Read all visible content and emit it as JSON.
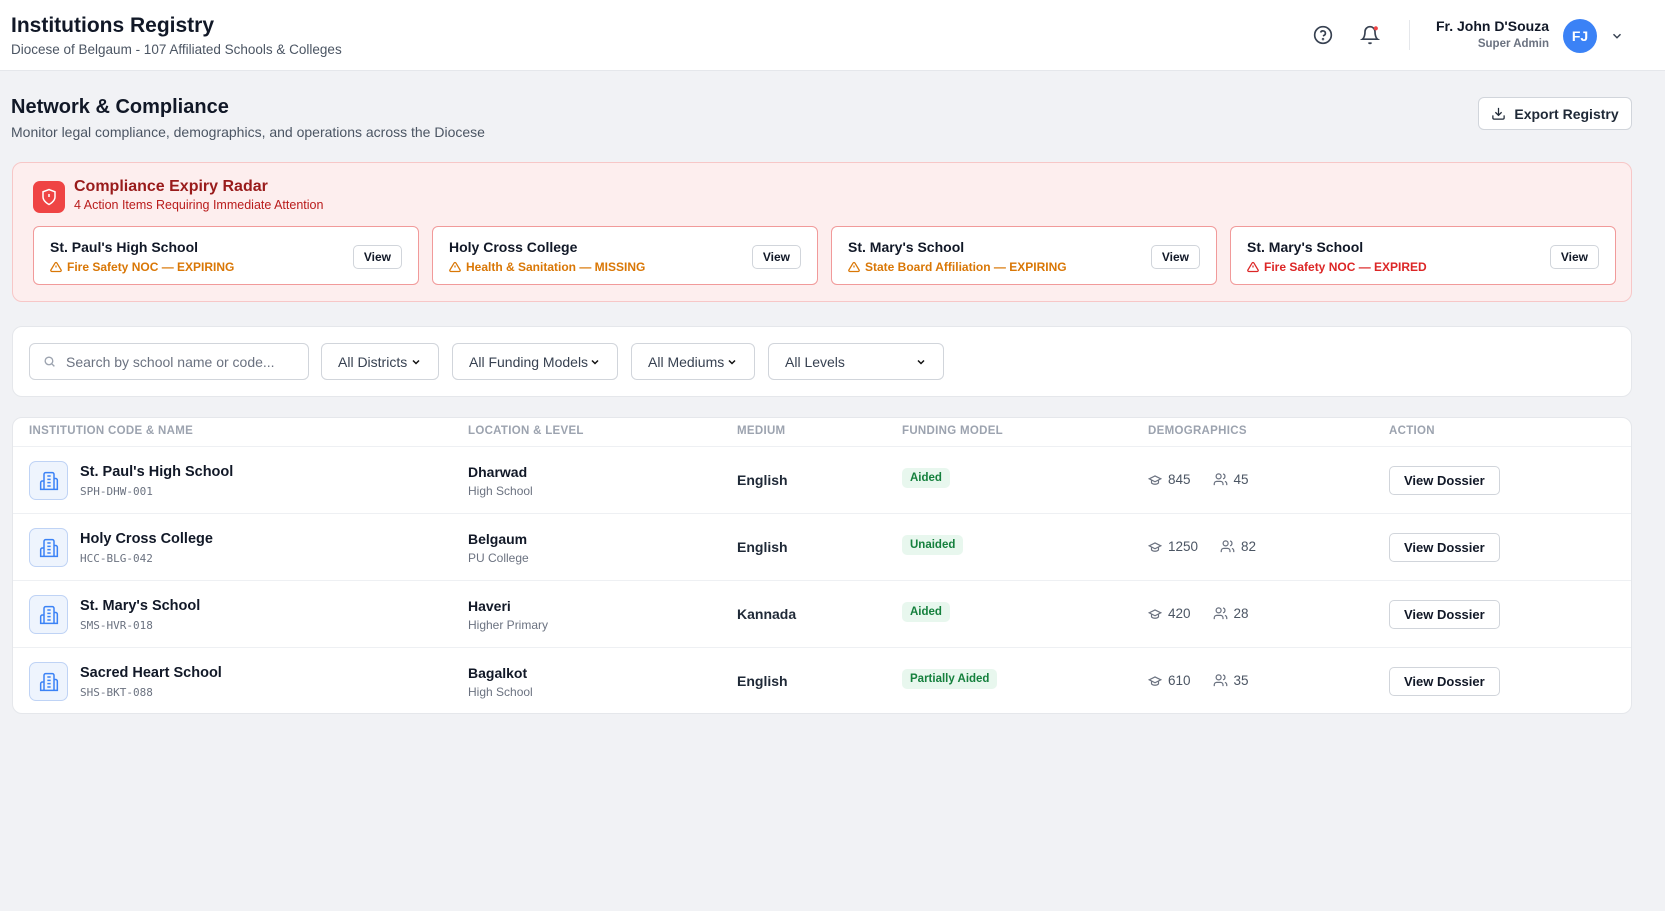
{
  "header": {
    "title": "Institutions Registry",
    "subtitle": "Diocese of Belgaum - 107 Affiliated Schools & Colleges",
    "user_name": "Fr. John D'Souza",
    "user_role": "Super Admin",
    "initials": "FJ"
  },
  "page": {
    "title": "Network & Compliance",
    "subtitle": "Monitor legal compliance, demographics, and operations across the Diocese",
    "export_button": "Export Registry"
  },
  "radar": {
    "title": "Compliance Expiry Radar",
    "subtitle": "4 Action Items Requiring Immediate Attention",
    "alerts": [
      {
        "school": "St. Paul's High School",
        "issue": "Fire Safety NOC — EXPIRING",
        "button": "View"
      },
      {
        "school": "Holy Cross College",
        "issue": "Health & Sanitation — MISSING",
        "button": "View"
      },
      {
        "school": "St. Mary's School",
        "issue": "State Board Affiliation — EXPIRING",
        "button": "View"
      },
      {
        "school": "St. Mary's School",
        "issue": "Fire Safety NOC — EXPIRED",
        "button": "View"
      }
    ]
  },
  "filters": {
    "search_placeholder": "Search by school name or code...",
    "selects": [
      "All Districts",
      "All Funding Models",
      "All Mediums",
      "All Levels"
    ]
  },
  "table": {
    "columns": [
      "Institution Code & Name",
      "Location & Level",
      "Medium",
      "Funding Model",
      "Demographics",
      "Action"
    ],
    "rows": [
      {
        "name": "St. Paul's High School",
        "code": "SPH-DHW-001",
        "location": "Dharwad",
        "level": "High School",
        "medium": "English",
        "funding": "Aided",
        "students": "845",
        "staff": "45",
        "action": "View Dossier"
      },
      {
        "name": "Holy Cross College",
        "code": "HCC-BLG-042",
        "location": "Belgaum",
        "level": "PU College",
        "medium": "English",
        "funding": "Unaided",
        "students": "1250",
        "staff": "82",
        "action": "View Dossier"
      },
      {
        "name": "St. Mary's School",
        "code": "SMS-HVR-018",
        "location": "Haveri",
        "level": "Higher Primary",
        "medium": "Kannada",
        "funding": "Aided",
        "students": "420",
        "staff": "28",
        "action": "View Dossier"
      },
      {
        "name": "Sacred Heart School",
        "code": "SHS-BKT-088",
        "location": "Bagalkot",
        "level": "High School",
        "medium": "English",
        "funding": "Partially Aided",
        "students": "610",
        "staff": "35",
        "action": "View Dossier"
      }
    ]
  }
}
